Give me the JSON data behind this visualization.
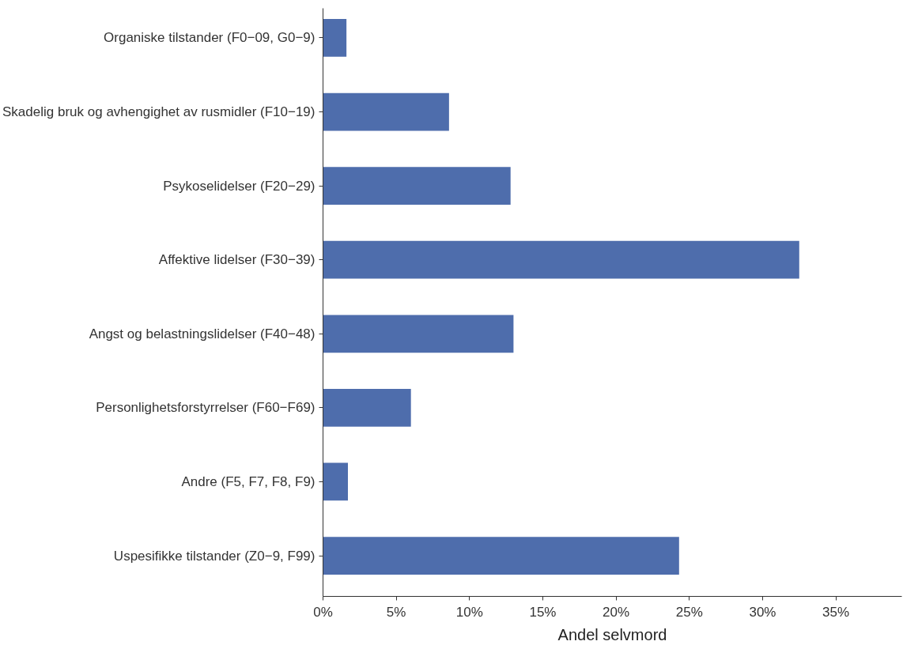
{
  "chart_data": {
    "type": "bar",
    "orientation": "horizontal",
    "xlabel": "Andel selvmord",
    "categories": [
      "Organiske tilstander (F0−09, G0−9)",
      "Skadelig bruk og avhengighet av rusmidler (F10−19)",
      "Psykoselidelser (F20−29)",
      "Affektive lidelser (F30−39)",
      "Angst og belastningslidelser (F40−48)",
      "Personlighetsforstyrrelser (F60−F69)",
      "Andre (F5, F7, F8, F9)",
      "Uspesifikke tilstander (Z0−9, F99)"
    ],
    "values": [
      1.6,
      8.6,
      12.8,
      32.5,
      13.0,
      6.0,
      1.7,
      24.3
    ],
    "color": "#4e6dac",
    "xlim": [
      0,
      39.5
    ],
    "xticks": [
      {
        "value": 0,
        "label": "0%"
      },
      {
        "value": 5,
        "label": "5%"
      },
      {
        "value": 10,
        "label": "10%"
      },
      {
        "value": 15,
        "label": "15%"
      },
      {
        "value": 20,
        "label": "20%"
      },
      {
        "value": 25,
        "label": "25%"
      },
      {
        "value": 30,
        "label": "30%"
      },
      {
        "value": 35,
        "label": "35%"
      }
    ],
    "grid": false
  }
}
